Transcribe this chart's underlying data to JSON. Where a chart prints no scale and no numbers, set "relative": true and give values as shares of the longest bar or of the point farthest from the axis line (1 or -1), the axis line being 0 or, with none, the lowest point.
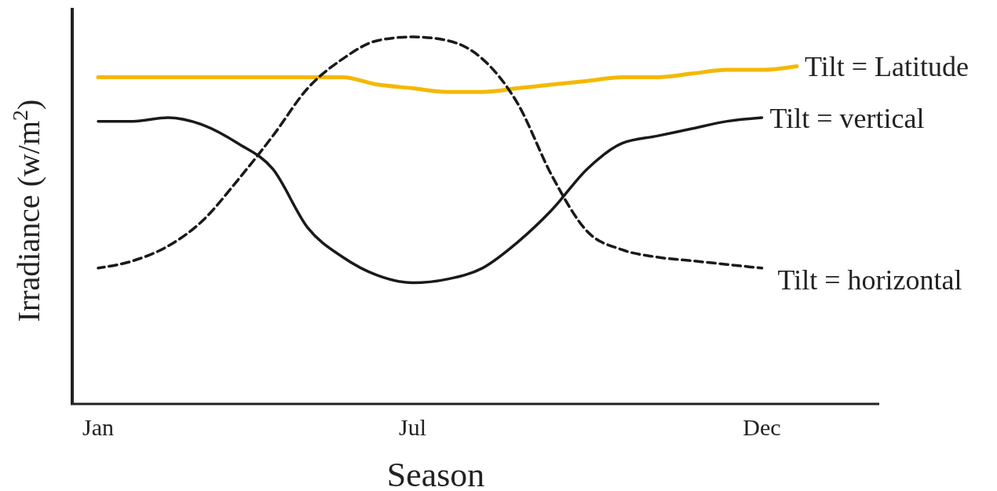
{
  "chart_data": {
    "type": "line",
    "relative": true,
    "xlabel": "Season",
    "ylabel": "Irradiance (w/m$^{2}$)",
    "categories": [
      "Jan",
      null,
      null,
      null,
      null,
      null,
      null,
      null,
      null,
      "Jul",
      null,
      null,
      null,
      null,
      null,
      null,
      null,
      null,
      null,
      "Dec",
      null
    ],
    "series": [
      {
        "name": "Tilt = Latitude",
        "color": "#f5b800",
        "line_style": "solid",
        "values": [
          0.89,
          0.89,
          0.89,
          0.89,
          0.89,
          0.89,
          0.89,
          0.89,
          0.87,
          0.86,
          0.85,
          0.85,
          0.86,
          0.87,
          0.88,
          0.89,
          0.89,
          0.9,
          0.91,
          0.91,
          0.92
        ]
      },
      {
        "name": "Tilt = vertical",
        "color": "#1a1a1a",
        "line_style": "solid",
        "values": [
          0.77,
          0.77,
          0.78,
          0.76,
          0.71,
          0.64,
          0.48,
          0.4,
          0.35,
          0.33,
          0.34,
          0.37,
          0.44,
          0.53,
          0.64,
          0.71,
          0.73,
          0.75,
          0.77,
          0.78,
          null
        ]
      },
      {
        "name": "Tilt = horizontal",
        "color": "#1a1a1a",
        "line_style": "dashed",
        "values": [
          0.37,
          0.39,
          0.43,
          0.5,
          0.61,
          0.73,
          0.86,
          0.94,
          0.99,
          1.0,
          0.99,
          0.94,
          0.82,
          0.62,
          0.47,
          0.42,
          0.4,
          0.39,
          0.38,
          0.37,
          null
        ]
      }
    ]
  }
}
